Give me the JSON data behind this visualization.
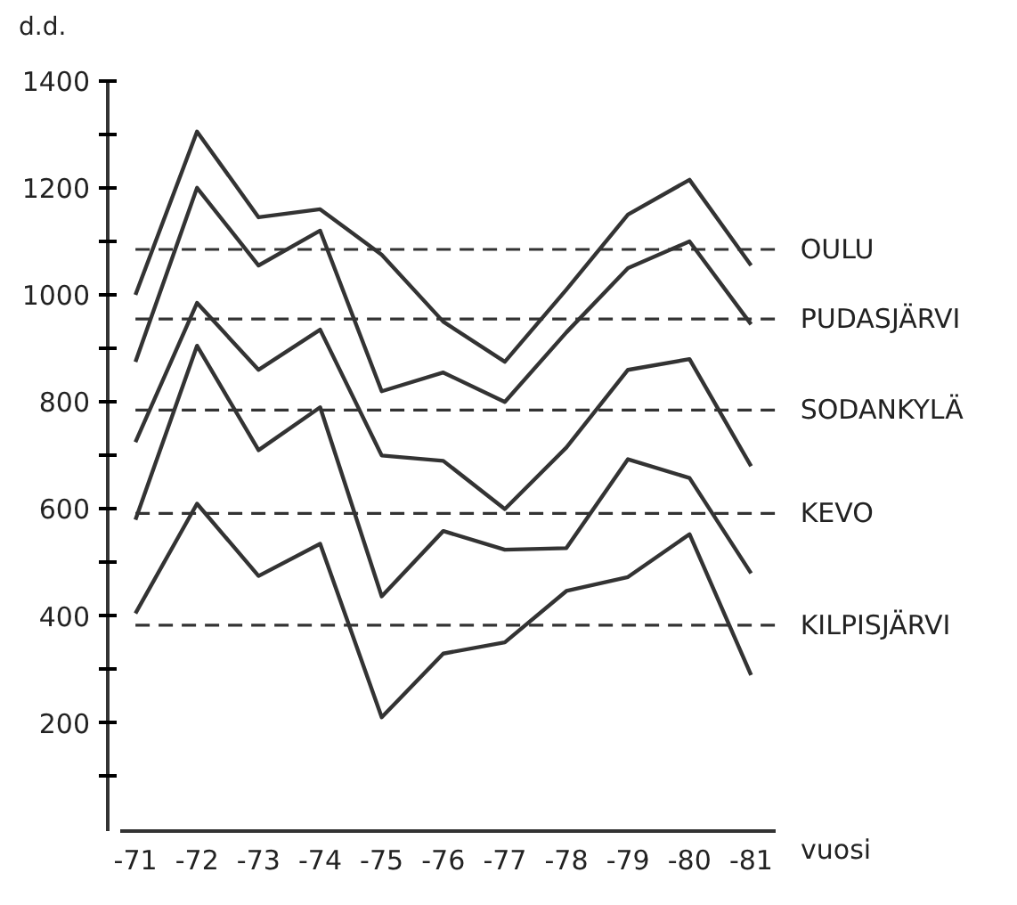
{
  "chart_data": {
    "type": "line",
    "xlabel": "vuosi",
    "ylabel": "d.d.",
    "categories": [
      "-71",
      "-72",
      "-73",
      "-74",
      "-75",
      "-76",
      "-77",
      "-78",
      "-79",
      "-80",
      "-81"
    ],
    "series": [
      {
        "name": "OULU",
        "color": "#333333",
        "values": [
          1000,
          1305,
          1145,
          1160,
          1075,
          950,
          875,
          1010,
          1150,
          1215,
          1055
        ]
      },
      {
        "name": "PUDASJÄRVI",
        "color": "#333333",
        "values": [
          875,
          1200,
          1055,
          1120,
          820,
          855,
          800,
          930,
          1050,
          1100,
          945
        ]
      },
      {
        "name": "SODANKYLÄ",
        "color": "#333333",
        "values": [
          725,
          985,
          860,
          935,
          700,
          690,
          600,
          715,
          860,
          880,
          680
        ]
      },
      {
        "name": "KEVO",
        "color": "#333333",
        "values": [
          580,
          905,
          710,
          790,
          437,
          559,
          524,
          527,
          693,
          658,
          480
        ]
      },
      {
        "name": "KILPISJÄRVI",
        "color": "#333333",
        "values": [
          405,
          610,
          475,
          535,
          211,
          330,
          351,
          447,
          473,
          553,
          290
        ]
      }
    ],
    "ref_lines": [
      {
        "axis": "y",
        "value": 1085,
        "line_style": "dashed",
        "color": "#333333"
      },
      {
        "axis": "y",
        "value": 955,
        "line_style": "dashed",
        "color": "#333333"
      },
      {
        "axis": "y",
        "value": 785,
        "line_style": "dashed",
        "color": "#333333"
      },
      {
        "axis": "y",
        "value": 592,
        "line_style": "dashed",
        "color": "#333333"
      },
      {
        "axis": "y",
        "value": 383,
        "line_style": "dashed",
        "color": "#333333"
      }
    ],
    "ylim": [
      0,
      1400
    ],
    "yticks": [
      {
        "value": 100,
        "label": null
      },
      200,
      {
        "value": 300,
        "label": null
      },
      400,
      {
        "value": 500,
        "label": null
      },
      600,
      {
        "value": 700,
        "label": null
      },
      800,
      {
        "value": 900,
        "label": null
      },
      1000,
      {
        "value": 1100,
        "label": null
      },
      1200,
      {
        "value": 1300,
        "label": null
      },
      1400
    ],
    "grid": false,
    "marker": "none",
    "line_style": "solid"
  }
}
